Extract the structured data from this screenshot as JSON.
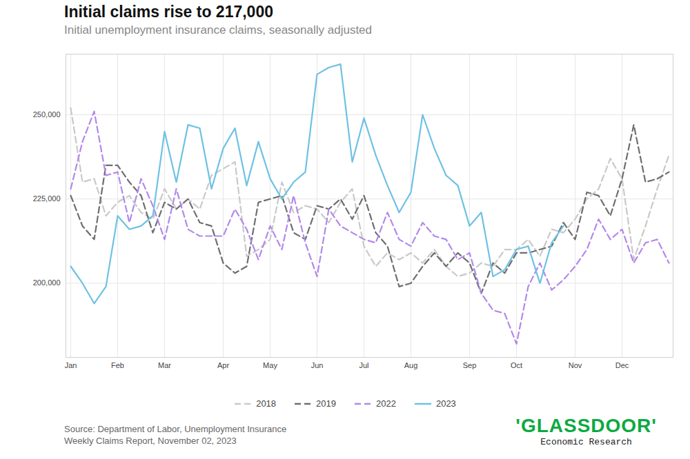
{
  "chart_data": {
    "type": "line",
    "title": "Initial claims rise to 217,000",
    "subtitle": "Initial unemployment insurance claims, seasonally adjusted",
    "source": [
      "Source: Department of Labor, Unemployment Insurance",
      "Weekly Claims Report, November 02, 2023"
    ],
    "logo": {
      "text": "'GLASSDOOR'",
      "subtext": "Economic Research"
    },
    "categories": [
      "Jan",
      null,
      null,
      null,
      "Feb",
      null,
      null,
      null,
      "Mar",
      null,
      null,
      null,
      null,
      "Apr",
      null,
      null,
      null,
      "May",
      null,
      null,
      null,
      "Jun",
      null,
      null,
      null,
      "Jul",
      null,
      null,
      null,
      "Aug",
      null,
      null,
      null,
      null,
      "Sep",
      null,
      null,
      null,
      "Oct",
      null,
      null,
      null,
      null,
      "Nov",
      null,
      null,
      null,
      "Dec",
      null,
      null,
      null,
      null
    ],
    "ylim": [
      178000,
      268000
    ],
    "yticks": [
      {
        "value": 200000,
        "label": "200,000"
      },
      {
        "value": 225000,
        "label": "225,000"
      },
      {
        "value": 250000,
        "label": "250,000"
      }
    ],
    "grid": true,
    "legend": "bottom",
    "series": [
      {
        "name": "2018",
        "color": "#c9c9c9",
        "line_style": "dashed",
        "values": [
          252000,
          230000,
          231000,
          220000,
          224000,
          226000,
          221000,
          219000,
          228000,
          222000,
          225000,
          222000,
          232000,
          234000,
          236000,
          208000,
          210000,
          213000,
          230000,
          221000,
          223000,
          222000,
          218000,
          224000,
          228000,
          211000,
          205000,
          209000,
          207000,
          209000,
          206000,
          210000,
          205000,
          202000,
          203000,
          206000,
          205000,
          210000,
          210000,
          213000,
          208000,
          216000,
          215000,
          219000,
          225000,
          228000,
          237000,
          231000,
          207000,
          217000,
          228000,
          238000
        ]
      },
      {
        "name": "2019",
        "color": "#6e6e6e",
        "line_style": "dashed",
        "values": [
          226000,
          217000,
          213000,
          235000,
          235000,
          230000,
          226000,
          215000,
          224000,
          222000,
          225000,
          218000,
          217000,
          206000,
          203000,
          205000,
          224000,
          225000,
          226000,
          215000,
          213000,
          223000,
          222000,
          225000,
          219000,
          226000,
          215000,
          211000,
          199000,
          200000,
          205000,
          209000,
          205000,
          209000,
          206000,
          197000,
          206000,
          203000,
          209000,
          209000,
          210000,
          211000,
          218000,
          213000,
          227000,
          226000,
          220000,
          231000,
          247000,
          230000,
          231000,
          233000
        ]
      },
      {
        "name": "2022",
        "color": "#b388eb",
        "line_style": "dashed",
        "values": [
          228000,
          242000,
          251000,
          232000,
          233000,
          218000,
          231000,
          223000,
          213000,
          228000,
          216000,
          214000,
          214000,
          214000,
          222000,
          216000,
          207000,
          217000,
          210000,
          226000,
          212000,
          202000,
          222000,
          217000,
          215000,
          213000,
          212000,
          221000,
          213000,
          211000,
          218000,
          214000,
          213000,
          207000,
          209000,
          197000,
          192000,
          191000,
          182000,
          199000,
          206000,
          198000,
          201000,
          205000,
          210000,
          219000,
          213000,
          216000,
          206000,
          212000,
          213000,
          206000
        ]
      },
      {
        "name": "2023",
        "color": "#6ec1e4",
        "line_style": "solid",
        "values": [
          205000,
          200000,
          194000,
          199000,
          220000,
          216000,
          217000,
          220000,
          245000,
          230000,
          247000,
          246000,
          228000,
          240000,
          246000,
          229000,
          242000,
          231000,
          225000,
          230000,
          233000,
          262000,
          264000,
          265000,
          236000,
          249000,
          238000,
          229000,
          221000,
          227000,
          250000,
          240000,
          232000,
          229000,
          217000,
          221000,
          202000,
          204000,
          210000,
          211000,
          200000,
          212000,
          217000,
          null,
          null,
          null,
          null,
          null,
          null,
          null,
          null,
          null
        ]
      }
    ]
  }
}
